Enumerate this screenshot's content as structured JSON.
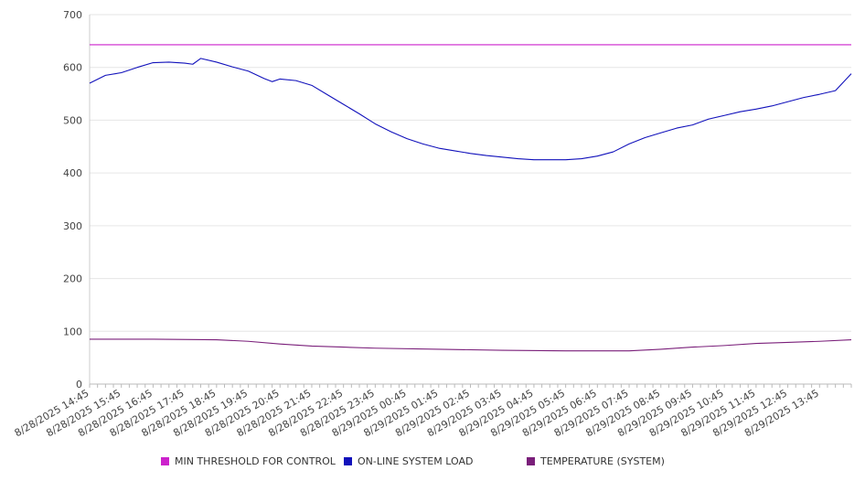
{
  "chart_data": {
    "type": "line",
    "title": "",
    "xlabel": "",
    "ylabel": "",
    "ylim": [
      0,
      700
    ],
    "y_ticks": [
      0,
      100,
      200,
      300,
      400,
      500,
      600,
      700
    ],
    "grid": true,
    "legend_position": "bottom",
    "x_tick_labels": [
      "8/28/2025 14:45",
      "8/28/2025 15:45",
      "8/28/2025 16:45",
      "8/28/2025 17:45",
      "8/28/2025 18:45",
      "8/28/2025 19:45",
      "8/28/2025 20:45",
      "8/28/2025 21:45",
      "8/28/2025 22:45",
      "8/28/2025 23:45",
      "8/29/2025 00:45",
      "8/29/2025 01:45",
      "8/29/2025 02:45",
      "8/29/2025 03:45",
      "8/29/2025 04:45",
      "8/29/2025 05:45",
      "8/29/2025 06:45",
      "8/29/2025 07:45",
      "8/29/2025 08:45",
      "8/29/2025 09:45",
      "8/29/2025 10:45",
      "8/29/2025 11:45",
      "8/29/2025 12:45",
      "8/29/2025 13:45"
    ],
    "x_range": [
      "8/28/2025 14:45",
      "8/29/2025 14:45"
    ],
    "series": [
      {
        "name": "MIN THRESHOLD FOR CONTROL",
        "color": "#cc22cc",
        "points": [
          [
            "8/28/2025 14:45",
            643
          ],
          [
            "8/29/2025 14:45",
            643
          ]
        ]
      },
      {
        "name": "ON-LINE SYSTEM LOAD",
        "color": "#1111bb",
        "points": [
          [
            "8/28/2025 14:45",
            570
          ],
          [
            "8/28/2025 15:15",
            585
          ],
          [
            "8/28/2025 15:45",
            590
          ],
          [
            "8/28/2025 16:15",
            600
          ],
          [
            "8/28/2025 16:45",
            609
          ],
          [
            "8/28/2025 17:15",
            610
          ],
          [
            "8/28/2025 17:45",
            608
          ],
          [
            "8/28/2025 18:00",
            606
          ],
          [
            "8/28/2025 18:15",
            617
          ],
          [
            "8/28/2025 18:45",
            610
          ],
          [
            "8/28/2025 19:15",
            601
          ],
          [
            "8/28/2025 19:45",
            593
          ],
          [
            "8/28/2025 20:15",
            579
          ],
          [
            "8/28/2025 20:30",
            573
          ],
          [
            "8/28/2025 20:45",
            578
          ],
          [
            "8/28/2025 21:15",
            575
          ],
          [
            "8/28/2025 21:45",
            566
          ],
          [
            "8/28/2025 22:15",
            548
          ],
          [
            "8/28/2025 22:45",
            530
          ],
          [
            "8/28/2025 23:15",
            512
          ],
          [
            "8/28/2025 23:45",
            493
          ],
          [
            "8/29/2025 00:15",
            478
          ],
          [
            "8/29/2025 00:45",
            465
          ],
          [
            "8/29/2025 01:15",
            455
          ],
          [
            "8/29/2025 01:45",
            447
          ],
          [
            "8/29/2025 02:15",
            442
          ],
          [
            "8/29/2025 02:45",
            437
          ],
          [
            "8/29/2025 03:15",
            433
          ],
          [
            "8/29/2025 03:45",
            430
          ],
          [
            "8/29/2025 04:15",
            427
          ],
          [
            "8/29/2025 04:45",
            425
          ],
          [
            "8/29/2025 05:15",
            425
          ],
          [
            "8/29/2025 05:45",
            425
          ],
          [
            "8/29/2025 06:15",
            427
          ],
          [
            "8/29/2025 06:45",
            432
          ],
          [
            "8/29/2025 07:15",
            440
          ],
          [
            "8/29/2025 07:45",
            455
          ],
          [
            "8/29/2025 08:15",
            467
          ],
          [
            "8/29/2025 08:45",
            476
          ],
          [
            "8/29/2025 09:15",
            485
          ],
          [
            "8/29/2025 09:45",
            491
          ],
          [
            "8/29/2025 10:15",
            502
          ],
          [
            "8/29/2025 10:45",
            509
          ],
          [
            "8/29/2025 11:15",
            516
          ],
          [
            "8/29/2025 11:45",
            521
          ],
          [
            "8/29/2025 12:15",
            527
          ],
          [
            "8/29/2025 12:45",
            535
          ],
          [
            "8/29/2025 13:15",
            543
          ],
          [
            "8/29/2025 13:45",
            549
          ],
          [
            "8/29/2025 14:15",
            556
          ],
          [
            "8/29/2025 14:45",
            588
          ]
        ]
      },
      {
        "name": "TEMPERATURE (SYSTEM)",
        "color": "#7a1f7a",
        "points": [
          [
            "8/28/2025 14:45",
            85
          ],
          [
            "8/28/2025 16:45",
            85
          ],
          [
            "8/28/2025 18:45",
            84
          ],
          [
            "8/28/2025 19:45",
            81
          ],
          [
            "8/28/2025 20:45",
            76
          ],
          [
            "8/28/2025 21:45",
            72
          ],
          [
            "8/28/2025 22:45",
            70
          ],
          [
            "8/28/2025 23:45",
            68
          ],
          [
            "8/29/2025 01:45",
            66
          ],
          [
            "8/29/2025 03:45",
            64
          ],
          [
            "8/29/2025 05:45",
            63
          ],
          [
            "8/29/2025 07:45",
            63
          ],
          [
            "8/29/2025 08:45",
            66
          ],
          [
            "8/29/2025 09:45",
            70
          ],
          [
            "8/29/2025 10:45",
            73
          ],
          [
            "8/29/2025 11:45",
            77
          ],
          [
            "8/29/2025 12:45",
            79
          ],
          [
            "8/29/2025 13:45",
            81
          ],
          [
            "8/29/2025 14:45",
            84
          ]
        ]
      }
    ]
  }
}
